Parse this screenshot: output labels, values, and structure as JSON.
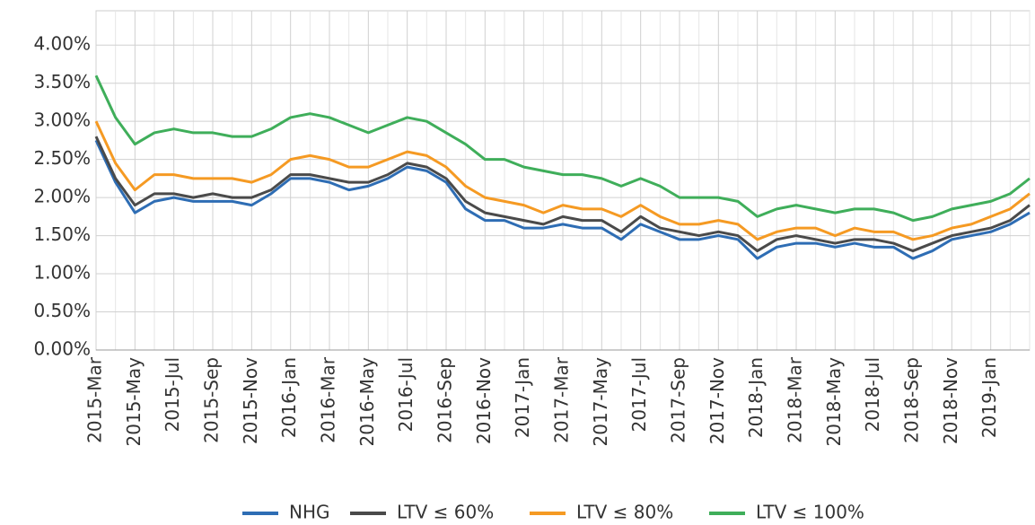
{
  "chart_data": {
    "type": "line",
    "categories": [
      "2015-Mar",
      null,
      "2015-May",
      null,
      "2015-Jul",
      null,
      "2015-Sep",
      null,
      "2015-Nov",
      null,
      "2016-Jan",
      null,
      "2016-Mar",
      null,
      "2016-May",
      null,
      "2016-Jul",
      null,
      "2016-Sep",
      null,
      "2016-Nov",
      null,
      "2017-Jan",
      null,
      "2017-Mar",
      null,
      "2017-May",
      null,
      "2017-Jul",
      null,
      "2017-Sep",
      null,
      "2017-Nov",
      null,
      "2018-Jan",
      null,
      "2018-Mar",
      null,
      "2018-May",
      null,
      "2018-Jul",
      null,
      "2018-Sep",
      null,
      "2018-Nov",
      null,
      "2019-Jan",
      null,
      null
    ],
    "series": [
      {
        "name": "NHG",
        "color": "#2e6db4",
        "values": [
          2.75,
          2.2,
          1.8,
          1.95,
          2.0,
          1.95,
          1.95,
          1.95,
          1.9,
          2.05,
          2.25,
          2.25,
          2.2,
          2.1,
          2.15,
          2.25,
          2.4,
          2.35,
          2.2,
          1.85,
          1.7,
          1.7,
          1.6,
          1.6,
          1.65,
          1.6,
          1.6,
          1.45,
          1.65,
          1.55,
          1.45,
          1.45,
          1.5,
          1.45,
          1.2,
          1.35,
          1.4,
          1.4,
          1.35,
          1.4,
          1.35,
          1.35,
          1.2,
          1.3,
          1.45,
          1.5,
          1.55,
          1.65,
          1.8
        ]
      },
      {
        "name": "LTV ≤ 60%",
        "color": "#4a4a4a",
        "values": [
          2.8,
          2.25,
          1.9,
          2.05,
          2.05,
          2.0,
          2.05,
          2.0,
          2.0,
          2.1,
          2.3,
          2.3,
          2.25,
          2.2,
          2.2,
          2.3,
          2.45,
          2.4,
          2.25,
          1.95,
          1.8,
          1.75,
          1.7,
          1.65,
          1.75,
          1.7,
          1.7,
          1.55,
          1.75,
          1.6,
          1.55,
          1.5,
          1.55,
          1.5,
          1.3,
          1.45,
          1.5,
          1.45,
          1.4,
          1.45,
          1.45,
          1.4,
          1.3,
          1.4,
          1.5,
          1.55,
          1.6,
          1.7,
          1.9
        ]
      },
      {
        "name": "LTV ≤ 80%",
        "color": "#f59a23",
        "values": [
          3.0,
          2.45,
          2.1,
          2.3,
          2.3,
          2.25,
          2.25,
          2.25,
          2.2,
          2.3,
          2.5,
          2.55,
          2.5,
          2.4,
          2.4,
          2.5,
          2.6,
          2.55,
          2.4,
          2.15,
          2.0,
          1.95,
          1.9,
          1.8,
          1.9,
          1.85,
          1.85,
          1.75,
          1.9,
          1.75,
          1.65,
          1.65,
          1.7,
          1.65,
          1.45,
          1.55,
          1.6,
          1.6,
          1.5,
          1.6,
          1.55,
          1.55,
          1.45,
          1.5,
          1.6,
          1.65,
          1.75,
          1.85,
          2.05
        ]
      },
      {
        "name": "LTV ≤ 100%",
        "color": "#3fae5a",
        "values": [
          3.6,
          3.05,
          2.7,
          2.85,
          2.9,
          2.85,
          2.85,
          2.8,
          2.8,
          2.9,
          3.05,
          3.1,
          3.05,
          2.95,
          2.85,
          2.95,
          3.05,
          3.0,
          2.85,
          2.7,
          2.5,
          2.5,
          2.4,
          2.35,
          2.3,
          2.3,
          2.25,
          2.15,
          2.25,
          2.15,
          2.0,
          2.0,
          2.0,
          1.95,
          1.75,
          1.85,
          1.9,
          1.85,
          1.8,
          1.85,
          1.85,
          1.8,
          1.7,
          1.75,
          1.85,
          1.9,
          1.95,
          2.05,
          2.25
        ]
      }
    ],
    "ylim": [
      0,
      4.45
    ],
    "yticks": [
      {
        "value": 0,
        "label": "0.00%"
      },
      {
        "value": 0.5,
        "label": "0.50%"
      },
      {
        "value": 1,
        "label": "1.00%"
      },
      {
        "value": 1.5,
        "label": "1.50%"
      },
      {
        "value": 2,
        "label": "2.00%"
      },
      {
        "value": 2.5,
        "label": "2.50%"
      },
      {
        "value": 3,
        "label": "3.00%"
      },
      {
        "value": 3.5,
        "label": "3.50%"
      },
      {
        "value": 4,
        "label": "4.00%"
      }
    ],
    "grid": true,
    "legend": "bottom"
  }
}
